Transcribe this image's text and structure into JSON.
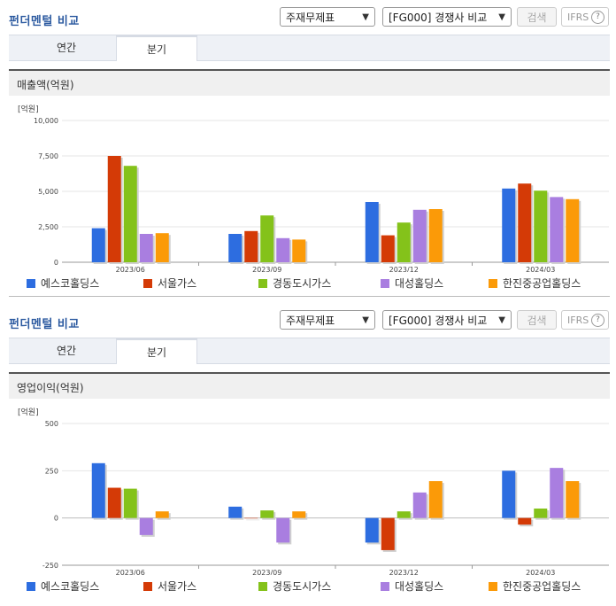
{
  "panels": [
    {
      "title": "펀더멘털 비교",
      "select1": "주재무제표",
      "select2": "[FG000] 경쟁사 비교",
      "search_label": "검색",
      "ifrs_label": "IFRS",
      "ifrs_help": "?",
      "tabs": [
        "연간",
        "분기"
      ],
      "chart_title": "매출액(억원)"
    },
    {
      "title": "펀더멘털 비교",
      "select1": "주재무제표",
      "select2": "[FG000] 경쟁사 비교",
      "search_label": "검색",
      "ifrs_label": "IFRS",
      "ifrs_help": "?",
      "tabs": [
        "연간",
        "분기"
      ],
      "chart_title": "영업이익(억원)"
    }
  ],
  "series_names": [
    "예스코홀딩스",
    "서울가스",
    "경동도시가스",
    "대성홀딩스",
    "한진중공업홀딩스"
  ],
  "series_colors": [
    "#2d6de0",
    "#d43a06",
    "#84c21a",
    "#a97ee0",
    "#fb9a08"
  ],
  "chart_data": [
    {
      "type": "bar",
      "unit_label": "[억원]",
      "categories": [
        "2023/06",
        "2023/09",
        "2023/12",
        "2024/03"
      ],
      "ylim": [
        0,
        10000
      ],
      "yticks": [
        0,
        2500,
        5000,
        7500,
        10000
      ],
      "ytick_labels": [
        "0",
        "2,500",
        "5,000",
        "7,500",
        "10,000"
      ],
      "series": [
        {
          "name": "예스코홀딩스",
          "values": [
            2400,
            2000,
            4250,
            5200
          ]
        },
        {
          "name": "서울가스",
          "values": [
            7500,
            2200,
            1900,
            5550
          ]
        },
        {
          "name": "경동도시가스",
          "values": [
            6800,
            3300,
            2800,
            5050
          ]
        },
        {
          "name": "대성홀딩스",
          "values": [
            2000,
            1700,
            3700,
            4600
          ]
        },
        {
          "name": "한진중공업홀딩스",
          "values": [
            2050,
            1600,
            3750,
            4450
          ]
        }
      ]
    },
    {
      "type": "bar",
      "unit_label": "[억원]",
      "categories": [
        "2023/06",
        "2023/09",
        "2023/12",
        "2024/03"
      ],
      "ylim": [
        -250,
        500
      ],
      "yticks": [
        -250,
        0,
        250,
        500
      ],
      "ytick_labels": [
        "-250",
        "0",
        "250",
        "500"
      ],
      "series": [
        {
          "name": "예스코홀딩스",
          "values": [
            290,
            60,
            -130,
            250
          ]
        },
        {
          "name": "서울가스",
          "values": [
            160,
            0,
            -170,
            -35
          ]
        },
        {
          "name": "경동도시가스",
          "values": [
            155,
            40,
            35,
            50
          ]
        },
        {
          "name": "대성홀딩스",
          "values": [
            -90,
            -130,
            135,
            265
          ]
        },
        {
          "name": "한진중공업홀딩스",
          "values": [
            35,
            35,
            195,
            195
          ]
        }
      ]
    }
  ]
}
